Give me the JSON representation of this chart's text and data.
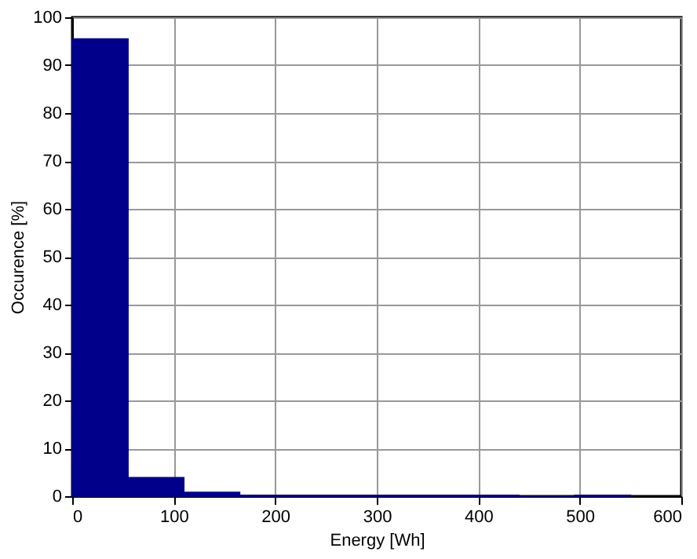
{
  "chart_data": {
    "type": "histogram",
    "xlabel": "Energy [Wh]",
    "ylabel": "Occurence [%]",
    "bins": [
      0,
      55,
      110,
      165,
      220,
      275,
      330,
      385,
      440,
      495,
      550
    ],
    "values": [
      95.5,
      3.9,
      0.8,
      0.2,
      0.2,
      0.2,
      0.2,
      0.2,
      0,
      0.2
    ],
    "color": "#00008b",
    "xlim": [
      0,
      600
    ],
    "xticks": [
      0,
      100,
      200,
      300,
      400,
      500,
      600
    ],
    "ylim": [
      0,
      100
    ],
    "yticks": [
      0,
      10,
      20,
      30,
      40,
      50,
      60,
      70,
      80,
      90,
      100
    ],
    "grid": true
  }
}
